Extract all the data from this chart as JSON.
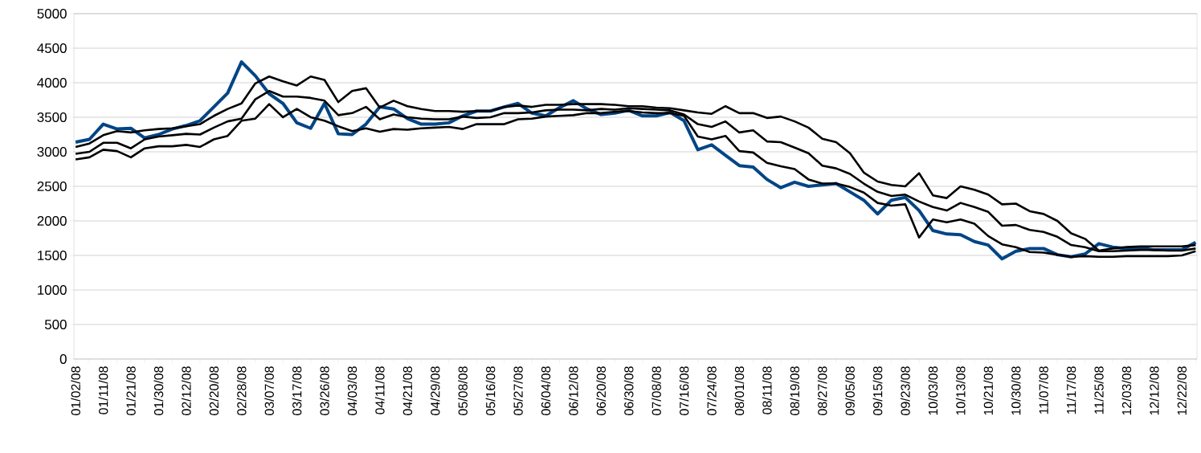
{
  "chart_data": {
    "type": "line",
    "categories": [
      "01/02/08",
      null,
      "01/11/08",
      null,
      "01/21/08",
      null,
      "01/30/08",
      null,
      "02/12/08",
      null,
      "02/20/08",
      null,
      "02/28/08",
      null,
      "03/07/08",
      null,
      "03/17/08",
      null,
      "03/26/08",
      null,
      "04/03/08",
      null,
      "04/11/08",
      null,
      "04/21/08",
      null,
      "04/29/08",
      null,
      "05/08/08",
      null,
      "05/16/08",
      null,
      "05/27/08",
      null,
      "06/04/08",
      null,
      "06/12/08",
      null,
      "06/20/08",
      null,
      "06/30/08",
      null,
      "07/08/08",
      null,
      "07/16/08",
      null,
      "07/24/08",
      null,
      "08/01/08",
      null,
      "08/11/08",
      null,
      "08/19/08",
      null,
      "08/27/08",
      null,
      "09/05/08",
      null,
      "09/15/08",
      null,
      "09/23/08",
      null,
      "10/03/08",
      null,
      "10/13/08",
      null,
      "10/21/08",
      null,
      "10/30/08",
      null,
      "11/07/08",
      null,
      "11/17/08",
      null,
      "11/25/08",
      null,
      "12/03/08",
      null,
      "12/12/08",
      null,
      "12/22/08",
      null
    ],
    "ylim": [
      0,
      5000
    ],
    "yticks": [
      0,
      500,
      1000,
      1500,
      2000,
      2500,
      3000,
      3500,
      4000,
      4500,
      5000
    ],
    "grid": "y",
    "series": [
      {
        "color": "#004586",
        "values": [
          3140,
          3180,
          3400,
          3330,
          3340,
          3200,
          3250,
          3330,
          3380,
          3450,
          3650,
          3850,
          4300,
          4100,
          3840,
          3700,
          3420,
          3340,
          3700,
          3260,
          3250,
          3400,
          3650,
          3620,
          3480,
          3400,
          3400,
          3420,
          3520,
          3590,
          3590,
          3650,
          3700,
          3560,
          3520,
          3640,
          3740,
          3620,
          3540,
          3560,
          3600,
          3520,
          3520,
          3570,
          3450,
          3030,
          3100,
          2950,
          2800,
          2780,
          2600,
          2480,
          2560,
          2500,
          2520,
          2540,
          2420,
          2300,
          2100,
          2300,
          2340,
          2150,
          1860,
          1810,
          1800,
          1700,
          1650,
          1450,
          1560,
          1600,
          1600,
          1510,
          1480,
          1520,
          1670,
          1620,
          1600,
          1610,
          1580,
          1580,
          1580,
          1690
        ]
      },
      {
        "color": "#000000",
        "values": [
          3070,
          3120,
          3240,
          3300,
          3280,
          3310,
          3330,
          3340,
          3370,
          3400,
          3520,
          3620,
          3700,
          3990,
          4090,
          4020,
          3960,
          4090,
          4040,
          3720,
          3880,
          3920,
          3640,
          3740,
          3660,
          3620,
          3590,
          3590,
          3580,
          3590,
          3590,
          3650,
          3670,
          3650,
          3680,
          3680,
          3690,
          3690,
          3690,
          3680,
          3660,
          3660,
          3640,
          3630,
          3600,
          3570,
          3550,
          3660,
          3560,
          3560,
          3490,
          3510,
          3440,
          3350,
          3190,
          3140,
          2980,
          2700,
          2570,
          2520,
          2500,
          2690,
          2370,
          2330,
          2500,
          2450,
          2380,
          2240,
          2250,
          2140,
          2100,
          2000,
          1820,
          1740,
          1570,
          1600,
          1620,
          1630,
          1630,
          1630,
          1630,
          1650
        ]
      },
      {
        "color": "#000000",
        "values": [
          2970,
          3000,
          3130,
          3130,
          3050,
          3180,
          3220,
          3240,
          3260,
          3250,
          3350,
          3440,
          3480,
          3760,
          3880,
          3800,
          3800,
          3780,
          3740,
          3530,
          3560,
          3650,
          3470,
          3540,
          3500,
          3480,
          3470,
          3470,
          3510,
          3490,
          3500,
          3560,
          3560,
          3570,
          3600,
          3610,
          3610,
          3600,
          3620,
          3610,
          3630,
          3620,
          3610,
          3600,
          3540,
          3400,
          3360,
          3440,
          3280,
          3310,
          3150,
          3140,
          3060,
          2980,
          2800,
          2760,
          2680,
          2540,
          2420,
          2360,
          2380,
          2280,
          2200,
          2150,
          2260,
          2200,
          2130,
          1930,
          1940,
          1870,
          1840,
          1770,
          1650,
          1620,
          1560,
          1560,
          1570,
          1580,
          1580,
          1570,
          1570,
          1600
        ]
      },
      {
        "color": "#000000",
        "values": [
          2890,
          2920,
          3030,
          3010,
          2920,
          3050,
          3080,
          3080,
          3100,
          3070,
          3180,
          3230,
          3450,
          3480,
          3690,
          3500,
          3620,
          3500,
          3450,
          3370,
          3300,
          3340,
          3290,
          3330,
          3320,
          3340,
          3350,
          3360,
          3330,
          3400,
          3400,
          3400,
          3470,
          3480,
          3510,
          3520,
          3530,
          3560,
          3560,
          3580,
          3590,
          3570,
          3560,
          3560,
          3520,
          3220,
          3180,
          3230,
          3010,
          2990,
          2840,
          2790,
          2750,
          2600,
          2540,
          2540,
          2490,
          2410,
          2260,
          2220,
          2240,
          1760,
          2020,
          1980,
          2020,
          1960,
          1780,
          1660,
          1620,
          1550,
          1540,
          1510,
          1480,
          1490,
          1480,
          1480,
          1490,
          1490,
          1490,
          1490,
          1500,
          1560
        ]
      }
    ]
  }
}
